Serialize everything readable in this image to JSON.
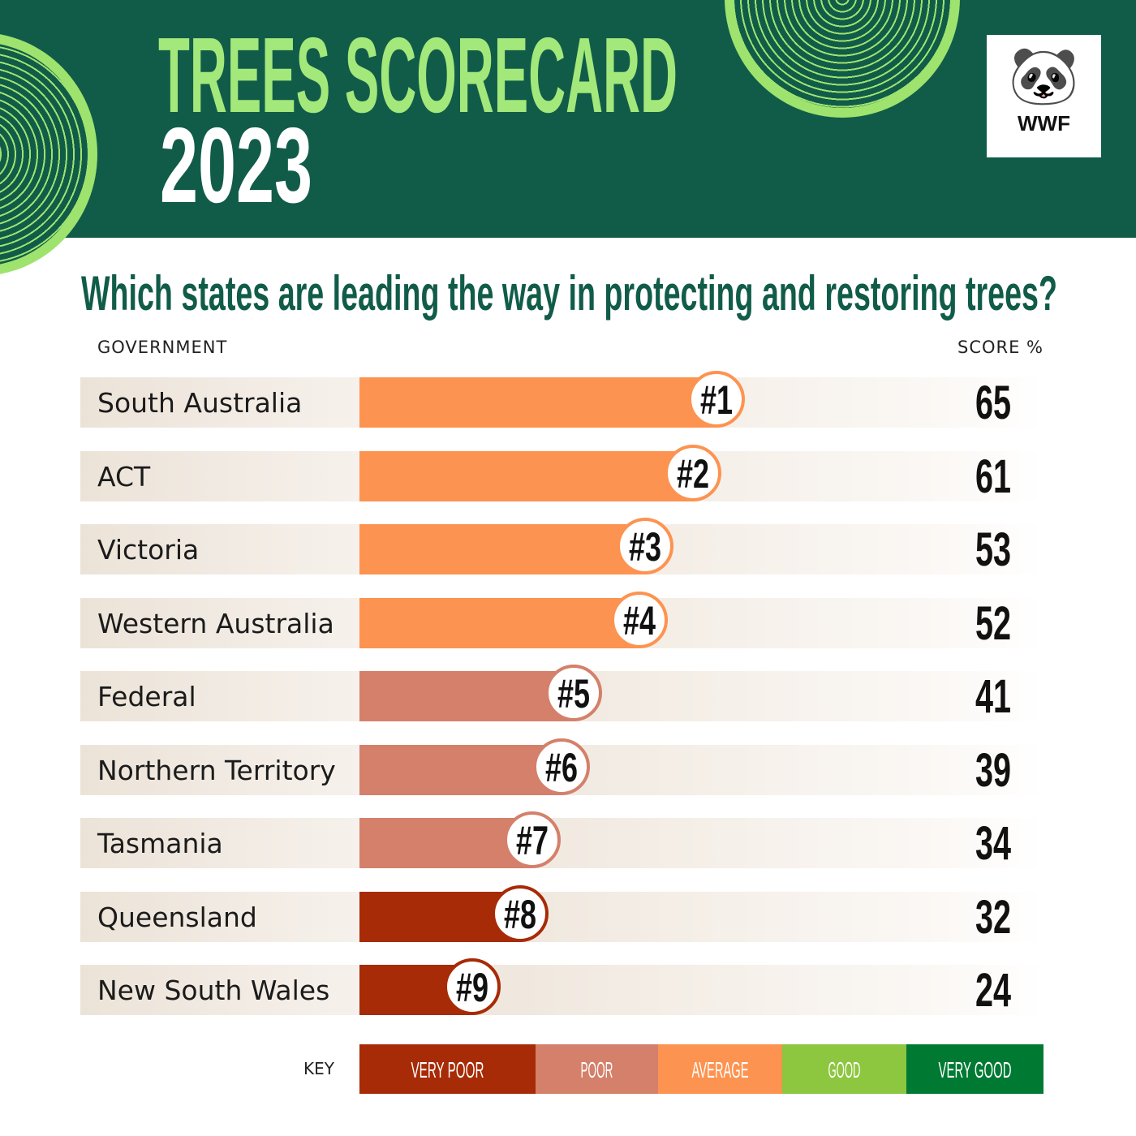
{
  "header": {
    "title_line1": "TREES SCORECARD",
    "title_line2": "2023",
    "logo_text": "WWF"
  },
  "colors": {
    "very_poor": "#a72b06",
    "poor": "#d4806a",
    "average": "#fd9350",
    "good": "#8dc63f",
    "very_good": "#007a33",
    "header_bg": "#115c49",
    "title_green": "#a3e87a"
  },
  "chart_data": {
    "type": "bar",
    "orientation": "horizontal",
    "title": "Which states are leading the way in protecting and restoring trees?",
    "category_header": "GOVERNMENT",
    "value_header": "SCORE %",
    "categories": [
      "South Australia",
      "ACT",
      "Victoria",
      "Western Australia",
      "Federal",
      "Northern Territory",
      "Tasmania",
      "Queensland",
      "New South Wales"
    ],
    "ranks": [
      "#1",
      "#2",
      "#3",
      "#4",
      "#5",
      "#6",
      "#7",
      "#8",
      "#9"
    ],
    "values": [
      65,
      61,
      53,
      52,
      41,
      39,
      34,
      32,
      24
    ],
    "ratings": [
      "average",
      "average",
      "average",
      "average",
      "poor",
      "poor",
      "poor",
      "very_poor",
      "very_poor"
    ],
    "key": {
      "label": "KEY",
      "items": [
        {
          "id": "very_poor",
          "label": "VERY POOR"
        },
        {
          "id": "poor",
          "label": "POOR"
        },
        {
          "id": "average",
          "label": "AVERAGE"
        },
        {
          "id": "good",
          "label": "GOOD"
        },
        {
          "id": "very_good",
          "label": "VERY GOOD"
        }
      ]
    }
  }
}
